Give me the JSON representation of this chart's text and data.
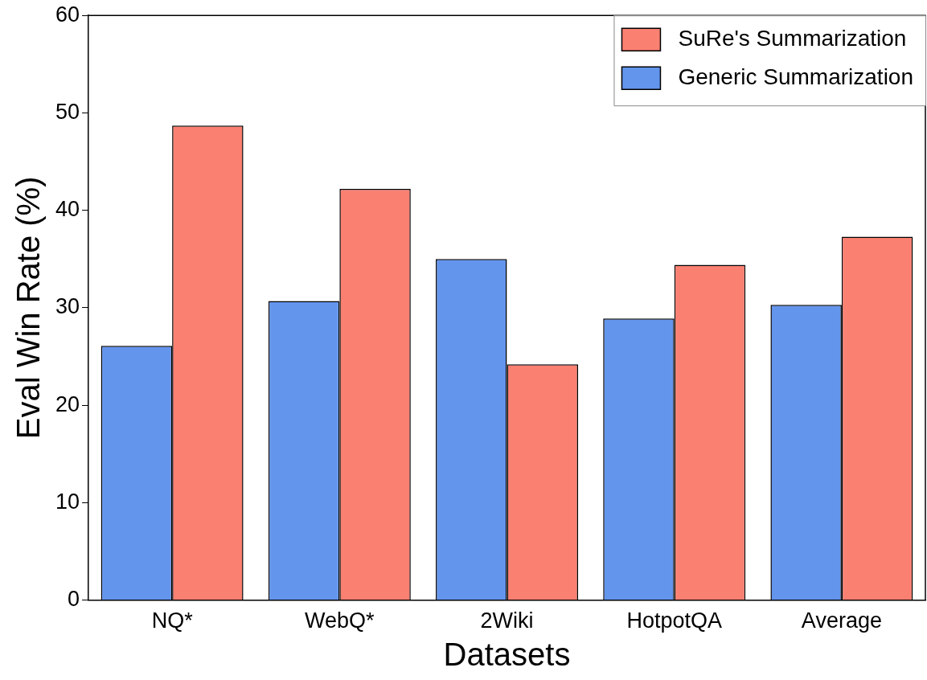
{
  "chart_data": {
    "type": "bar",
    "xlabel": "Datasets",
    "ylabel": "Eval Win Rate (%)",
    "categories": [
      "NQ*",
      "WebQ*",
      "2Wiki",
      "HotpotQA",
      "Average"
    ],
    "series": [
      {
        "name": "Generic Summarization",
        "color": "#6495ed",
        "values": [
          26.1,
          30.7,
          35.0,
          28.9,
          30.3
        ]
      },
      {
        "name": "SuRe's Summarization",
        "color": "#fa8072",
        "values": [
          48.7,
          42.2,
          24.2,
          34.4,
          37.3
        ]
      }
    ],
    "ylim": [
      0,
      60
    ],
    "yticks": [
      0,
      10,
      20,
      30,
      40,
      50,
      60
    ],
    "grid": false,
    "legend": "top right"
  }
}
